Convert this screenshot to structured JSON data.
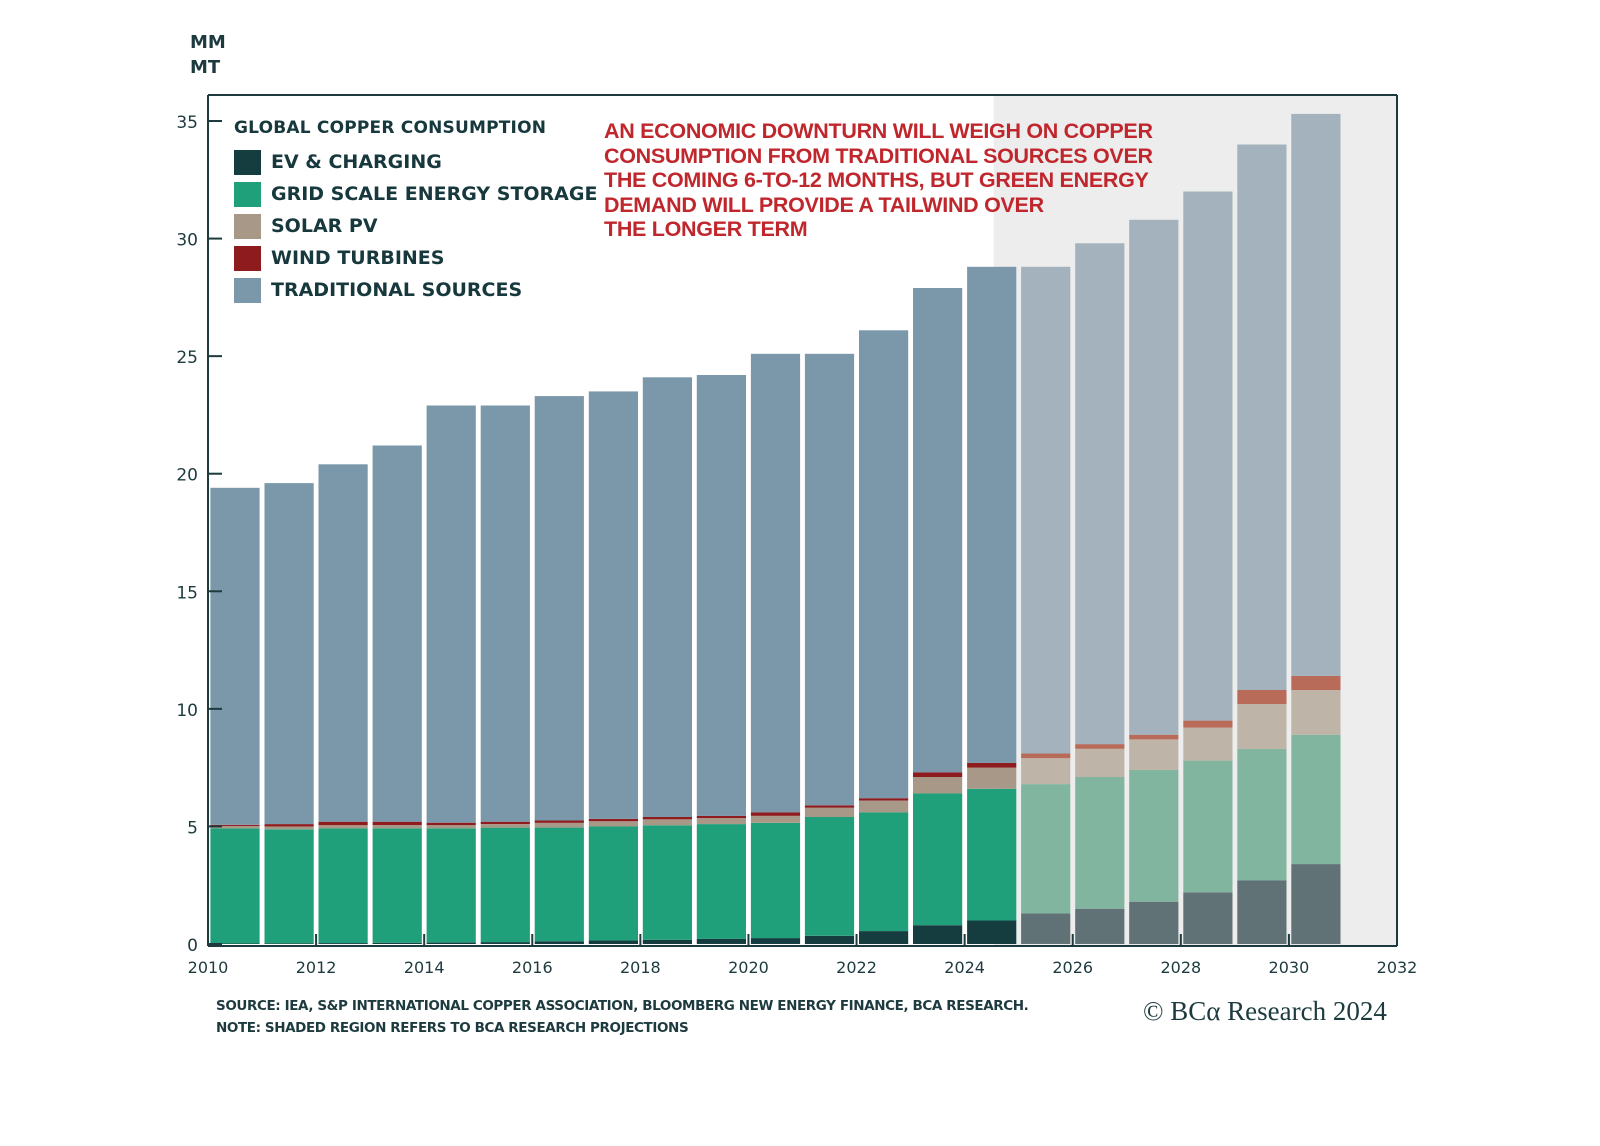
{
  "chart_data": {
    "type": "bar",
    "stacked": true,
    "title": "GLOBAL COPPER CONSUMPTION",
    "ylabel": "MM MT",
    "xlabel": "",
    "ylim": [
      0,
      35
    ],
    "xlim": [
      2010,
      2032
    ],
    "yticks": [
      0,
      5,
      10,
      15,
      20,
      25,
      30,
      35
    ],
    "xticks": [
      2010,
      2012,
      2014,
      2016,
      2018,
      2020,
      2022,
      2024,
      2026,
      2028,
      2030,
      2032
    ],
    "projection_start": 2025,
    "projection_shaded": true,
    "legend_position": "top-left",
    "categories": [
      2010,
      2011,
      2012,
      2013,
      2014,
      2015,
      2016,
      2017,
      2018,
      2019,
      2020,
      2021,
      2022,
      2023,
      2024,
      2025,
      2026,
      2027,
      2028,
      2029,
      2030
    ],
    "series": [
      {
        "name": "EV & CHARGING",
        "color": "#153d40",
        "projected_color": "#607275",
        "values": [
          0.02,
          0.03,
          0.04,
          0.05,
          0.06,
          0.08,
          0.12,
          0.15,
          0.18,
          0.22,
          0.25,
          0.35,
          0.55,
          0.8,
          1.0,
          1.3,
          1.5,
          1.8,
          2.2,
          2.7,
          3.4
        ]
      },
      {
        "name": "GRID SCALE ENERGY STORAGE",
        "color": "#1fa07a",
        "projected_color": "#82b5a0",
        "values": [
          4.9,
          4.85,
          4.88,
          4.87,
          4.86,
          4.87,
          4.83,
          4.85,
          4.87,
          4.88,
          4.9,
          5.05,
          5.05,
          5.6,
          5.6,
          5.5,
          5.6,
          5.6,
          5.6,
          5.6,
          5.5
        ]
      },
      {
        "name": "SOLAR PV",
        "color": "#a89888",
        "projected_color": "#bfb4a8",
        "values": [
          0.1,
          0.12,
          0.13,
          0.14,
          0.14,
          0.15,
          0.2,
          0.22,
          0.25,
          0.25,
          0.3,
          0.4,
          0.5,
          0.7,
          0.9,
          1.1,
          1.2,
          1.3,
          1.4,
          1.9,
          1.9
        ]
      },
      {
        "name": "WIND TURBINES",
        "color": "#8e1b1e",
        "projected_color": "#b86b58",
        "values": [
          0.05,
          0.1,
          0.15,
          0.14,
          0.1,
          0.1,
          0.1,
          0.1,
          0.1,
          0.1,
          0.15,
          0.1,
          0.1,
          0.2,
          0.2,
          0.2,
          0.2,
          0.2,
          0.3,
          0.6,
          0.6
        ]
      },
      {
        "name": "TRADITIONAL SOURCES",
        "color": "#7b98aa",
        "projected_color": "#a3b2bc",
        "values": [
          14.33,
          14.5,
          15.2,
          16.0,
          17.74,
          17.7,
          18.05,
          18.18,
          18.7,
          18.75,
          19.5,
          19.2,
          19.9,
          20.6,
          21.1,
          20.7,
          21.3,
          21.9,
          22.5,
          23.2,
          23.9
        ]
      }
    ],
    "annotation": "AN ECONOMIC DOWNTURN WILL WEIGH ON COPPER CONSUMPTION FROM TRADITIONAL SOURCES OVER THE COMING 6-TO-12 MONTHS, BUT GREEN ENERGY DEMAND WILL PROVIDE A TAILWIND OVER THE LONGER TERM"
  },
  "labels": {
    "unit_line1": "MM",
    "unit_line2": "MT",
    "legend_title": "GLOBAL COPPER CONSUMPTION",
    "legend_items": [
      "EV & CHARGING",
      "GRID SCALE ENERGY STORAGE",
      "SOLAR PV",
      "WIND TURBINES",
      "TRADITIONAL SOURCES"
    ],
    "annotation_lines": [
      "AN ECONOMIC DOWNTURN WILL WEIGH ON COPPER",
      "CONSUMPTION FROM TRADITIONAL SOURCES OVER",
      "THE COMING 6-TO-12 MONTHS, BUT GREEN ENERGY",
      "DEMAND WILL PROVIDE A TAILWIND OVER",
      "THE LONGER TERM"
    ],
    "source": "SOURCE: IEA, S&P INTERNATIONAL COPPER ASSOCIATION, BLOOMBERG NEW ENERGY FINANCE, BCA RESEARCH.",
    "note": "NOTE: SHADED REGION REFERS TO BCA RESEARCH PROJECTIONS",
    "copyright": "© BCα Research 2024"
  },
  "colors": {
    "axis": "#1d3a3e",
    "shade": "#ededed",
    "annotation": "#c0272d"
  }
}
